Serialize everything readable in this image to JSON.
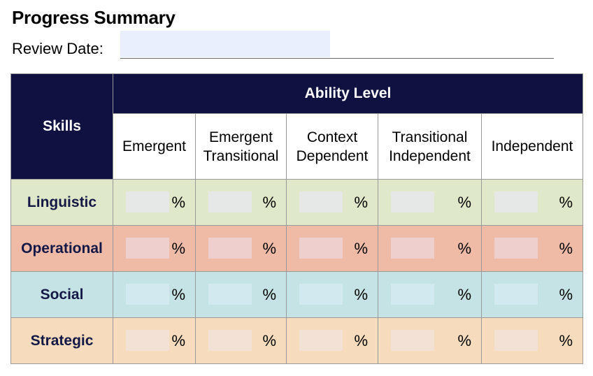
{
  "form": {
    "title": "Progress Summary",
    "review_date_label": "Review Date:",
    "review_date_value": ""
  },
  "table": {
    "skills_header": "Skills",
    "ability_header": "Ability Level",
    "levels": [
      [
        "Emergent"
      ],
      [
        "Emergent",
        "Transitional"
      ],
      [
        "Context",
        "Dependent"
      ],
      [
        "Transitional",
        "Independent"
      ],
      [
        "Independent"
      ]
    ],
    "percent_symbol": "%",
    "rows": [
      {
        "skill": "Linguistic",
        "values": [
          "",
          "",
          "",
          "",
          ""
        ],
        "color": "#dfe8c8"
      },
      {
        "skill": "Operational",
        "values": [
          "",
          "",
          "",
          "",
          ""
        ],
        "color": "#efbba7"
      },
      {
        "skill": "Social",
        "values": [
          "",
          "",
          "",
          "",
          ""
        ],
        "color": "#c5e2e4"
      },
      {
        "skill": "Strategic",
        "values": [
          "",
          "",
          "",
          "",
          ""
        ],
        "color": "#f6dcbc"
      }
    ]
  },
  "colors": {
    "header_navy": "#0f1241",
    "input_blue": "#eaeffd"
  }
}
